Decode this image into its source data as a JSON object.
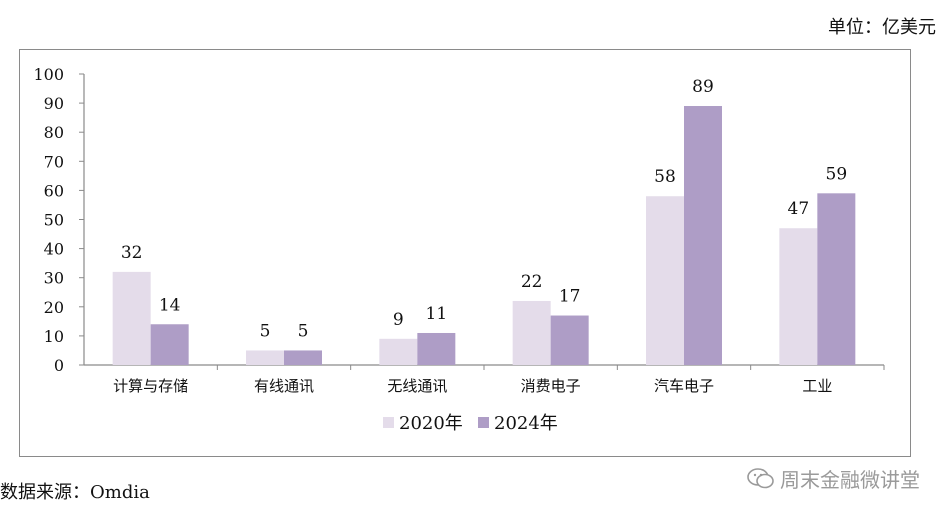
{
  "unit_label": "单位：亿美元",
  "source_label": "数据来源：Omdia",
  "watermark": {
    "text": "周末金融微讲堂",
    "icon": "wechat-icon"
  },
  "colors": {
    "series_2020": "#e4dcea",
    "series_2024": "#ae9dc6",
    "axis": "#8a8a8a"
  },
  "chart_data": {
    "type": "bar",
    "categories": [
      "计算与存储",
      "有线通讯",
      "无线通讯",
      "消费电子",
      "汽车电子",
      "工业"
    ],
    "series": [
      {
        "name": "2020年",
        "values": [
          32,
          5,
          9,
          22,
          58,
          47
        ]
      },
      {
        "name": "2024年",
        "values": [
          14,
          5,
          11,
          17,
          89,
          59
        ]
      }
    ],
    "ylim": [
      0,
      100
    ],
    "yticks": [
      0,
      10,
      20,
      30,
      40,
      50,
      60,
      70,
      80,
      90,
      100
    ],
    "grid": false,
    "legend_position": "bottom",
    "title": "",
    "xlabel": "",
    "ylabel": ""
  }
}
